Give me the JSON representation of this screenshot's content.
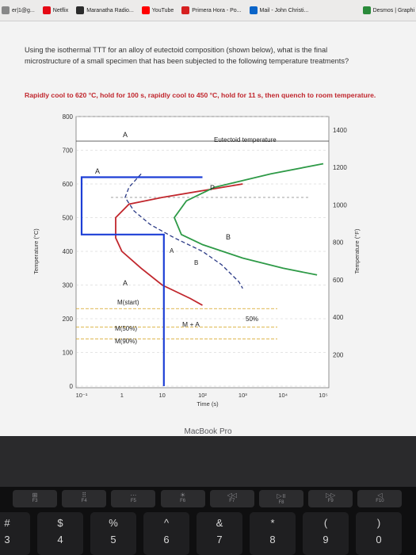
{
  "bookmarks": [
    {
      "label": "er|1@g...",
      "icon": "bookmark-icon",
      "color": "#888888"
    },
    {
      "label": "Netflix",
      "icon": "netflix-icon",
      "color": "#e50914"
    },
    {
      "label": "Maranatha Radio...",
      "icon": "radio-icon",
      "color": "#2b2b2b"
    },
    {
      "label": "YouTube",
      "icon": "youtube-icon",
      "color": "#ff0000"
    },
    {
      "label": "Primera Hora - Po...",
      "icon": "news-icon",
      "color": "#d62020"
    },
    {
      "label": "Mail - John Christi...",
      "icon": "mail-icon",
      "color": "#0a64c8"
    },
    {
      "label": "Desmos | Graphi",
      "icon": "desmos-icon",
      "color": "#2a8a3a"
    }
  ],
  "question": "Using the isothermal TTT for an alloy of eutectoid composition (shown below), what is the final microstructure of a small specimen that has been subjected to the following temperature treatments?",
  "treatment": "Rapidly cool to 620 °C, hold for 100 s, rapidly cool to 450 °C, hold for 11 s, then quench to room temperature.",
  "chart_data": {
    "type": "line",
    "title": "",
    "xlabel": "Time (s)",
    "ylabel": "Temperature (°C)",
    "ylabel_right": "Temperature (°F)",
    "xscale": "log",
    "xlim": [
      0.1,
      100000
    ],
    "ylim": [
      0,
      800
    ],
    "x_ticks": [
      "10⁻¹",
      "1",
      "10",
      "10²",
      "10³",
      "10⁴",
      "10⁵"
    ],
    "y_ticks_left": [
      "800",
      "700",
      "600",
      "500",
      "400",
      "300",
      "200",
      "100",
      "0"
    ],
    "y_ticks_right": [
      "1400",
      "1200",
      "1000",
      "800",
      "600",
      "400",
      "200"
    ],
    "annotations": {
      "eutectoid": "Eutectoid temperature",
      "A_top": "A",
      "A_upper": "A",
      "P": "P",
      "B": "B",
      "A_mid_left": "A",
      "A_mid_right": "A",
      "B_mid": "B",
      "A_low": "A",
      "M_start": "M(start)",
      "M_plus_A": "M + A",
      "M50": "M(50%)",
      "M90": "M(90%)",
      "pct50": "50%"
    },
    "eutectoid_temp": 727,
    "series": [
      {
        "role": "start-curve",
        "color": "#c1272d",
        "points": [
          [
            1000,
            600
          ],
          [
            100,
            580
          ],
          [
            10,
            560
          ],
          [
            1.5,
            540
          ],
          [
            0.7,
            500
          ],
          [
            0.7,
            440
          ],
          [
            1,
            400
          ],
          [
            3,
            350
          ],
          [
            10,
            300
          ],
          [
            50,
            260
          ],
          [
            100,
            240
          ]
        ]
      },
      {
        "role": "completion-curve",
        "color": "#2e9a47",
        "points": [
          [
            100000,
            660
          ],
          [
            5000,
            630
          ],
          [
            1000,
            610
          ],
          [
            200,
            590
          ],
          [
            40,
            550
          ],
          [
            20,
            500
          ],
          [
            30,
            450
          ],
          [
            100,
            420
          ],
          [
            1000,
            380
          ],
          [
            10000,
            350
          ],
          [
            70000,
            330
          ]
        ]
      },
      {
        "role": "50-percent-curve",
        "color": "#2b3a86",
        "points": [
          [
            3,
            630
          ],
          [
            1.5,
            590
          ],
          [
            1.2,
            560
          ],
          [
            2,
            520
          ],
          [
            5,
            480
          ],
          [
            20,
            440
          ],
          [
            100,
            400
          ],
          [
            300,
            360
          ],
          [
            800,
            310
          ],
          [
            1000,
            290
          ]
        ]
      },
      {
        "role": "treatment-path",
        "color": "#1d3fd6",
        "points": [
          [
            0.1,
            620
          ],
          [
            100,
            620
          ],
          [
            0.1,
            620
          ],
          [
            0.1,
            450
          ],
          [
            11,
            450
          ],
          [
            11,
            450
          ],
          [
            11,
            0
          ]
        ]
      }
    ]
  },
  "laptop_brand": "MacBook Pro",
  "fkeys": [
    {
      "label": "F3",
      "sym": "⊞"
    },
    {
      "label": "F4",
      "sym": "⠿"
    },
    {
      "label": "F5",
      "sym": "⋯"
    },
    {
      "label": "F6",
      "sym": "☀"
    },
    {
      "label": "F7",
      "sym": "◁◁"
    },
    {
      "label": "F8",
      "sym": "▷॥"
    },
    {
      "label": "F9",
      "sym": "▷▷"
    },
    {
      "label": "F10",
      "sym": "◁"
    }
  ],
  "keys": [
    {
      "top": "#",
      "bot": "3"
    },
    {
      "top": "$",
      "bot": "4"
    },
    {
      "top": "%",
      "bot": "5"
    },
    {
      "top": "^",
      "bot": "6"
    },
    {
      "top": "&",
      "bot": "7"
    },
    {
      "top": "*",
      "bot": "8"
    },
    {
      "top": "(",
      "bot": "9"
    },
    {
      "top": ")",
      "bot": "0"
    }
  ]
}
